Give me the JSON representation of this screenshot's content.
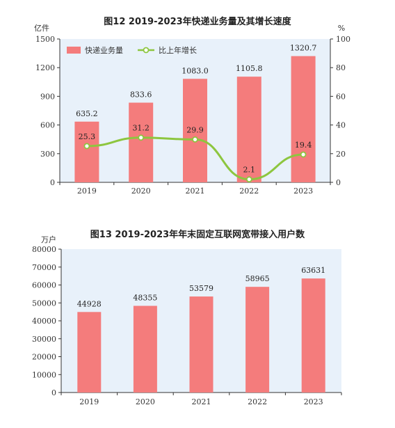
{
  "chart_data": [
    {
      "type": "bar",
      "title": "图12   2019-2023年快递业务量及其增长速度",
      "ylabel_left": "亿件",
      "ylabel_right": "%",
      "categories": [
        "2019",
        "2020",
        "2021",
        "2022",
        "2023"
      ],
      "series": [
        {
          "name": "快递业务量",
          "type": "bar",
          "axis": "left",
          "values": [
            635.2,
            833.6,
            1083.0,
            1105.8,
            1320.7
          ],
          "labels": [
            "635.2",
            "833.6",
            "1083.0",
            "1105.8",
            "1320.7"
          ]
        },
        {
          "name": "比上年增长",
          "type": "line",
          "axis": "right",
          "values": [
            25.3,
            31.2,
            29.9,
            2.1,
            19.4
          ],
          "labels": [
            "25.3",
            "31.2",
            "29.9",
            "2.1",
            "19.4"
          ]
        }
      ],
      "ylim_left": [
        0,
        1500
      ],
      "yticks_left": [
        "0",
        "300",
        "600",
        "900",
        "1200",
        "1500"
      ],
      "ylim_right": [
        0,
        100
      ],
      "yticks_right": [
        "0",
        "20",
        "40",
        "60",
        "80",
        "100"
      ],
      "legend": "top-left",
      "grid": false,
      "colors": {
        "bar": "#f47c7c",
        "line": "#8dc63f",
        "panel": "#e8f1fa",
        "marker_fill": "#ffffff"
      }
    },
    {
      "type": "bar",
      "title": "图13   2019-2023年年末固定互联网宽带接入用户数",
      "ylabel": "万户",
      "categories": [
        "2019",
        "2020",
        "2021",
        "2022",
        "2023"
      ],
      "series": [
        {
          "name": "",
          "values": [
            44928,
            48355,
            53579,
            58965,
            63631
          ],
          "labels": [
            "44928",
            "48355",
            "53579",
            "58965",
            "63631"
          ]
        }
      ],
      "ylim": [
        0,
        80000
      ],
      "yticks": [
        "0",
        "10000",
        "20000",
        "30000",
        "40000",
        "50000",
        "60000",
        "70000",
        "80000"
      ],
      "grid": false,
      "colors": {
        "bar": "#f47c7c",
        "panel": "#e8f1fa"
      }
    }
  ]
}
